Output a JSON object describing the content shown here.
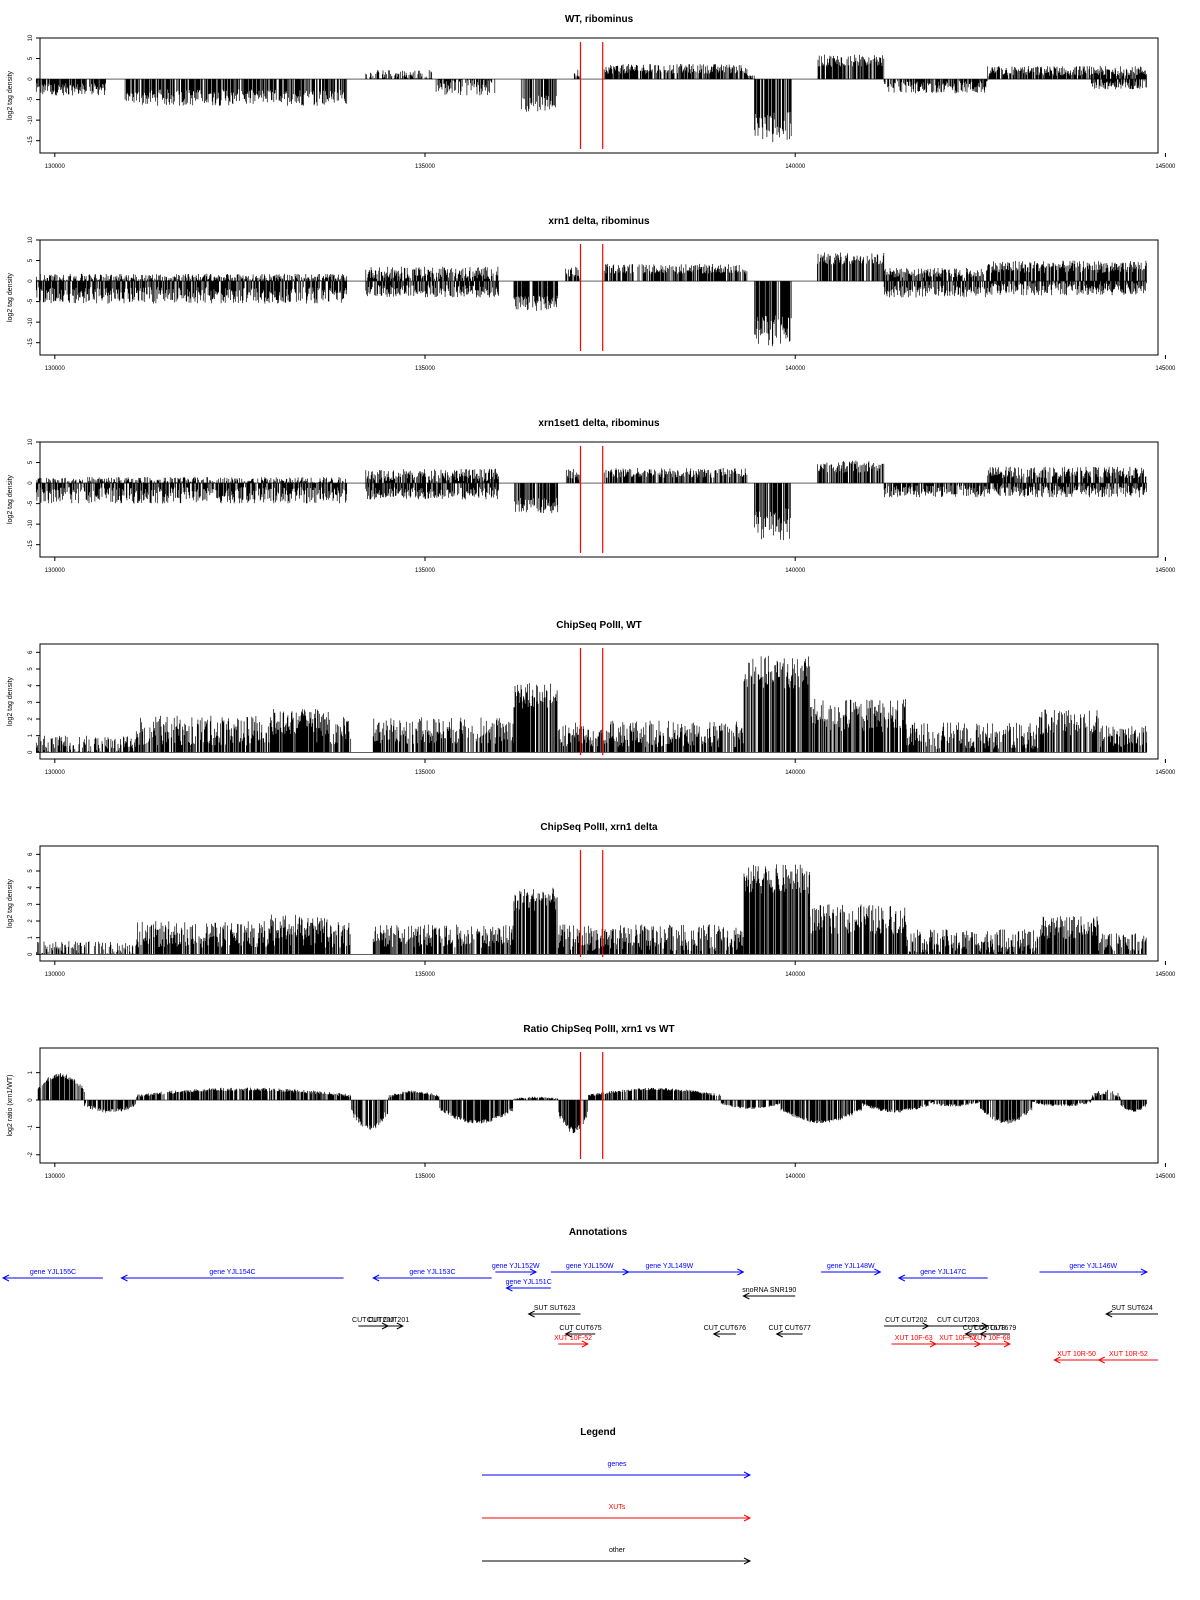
{
  "chart_data": {
    "type": "area",
    "x_range": [
      129800,
      144900
    ],
    "x_ticks": [
      130000,
      135000,
      140000,
      145000
    ],
    "x_tick_labels": [
      "130000",
      "135000",
      "140000",
      "145000"
    ],
    "marker_lines": [
      137100,
      137400
    ],
    "marker_color": "#ff0000",
    "bar_color": "#000000",
    "panels": [
      {
        "id": "wt",
        "title": "WT, ribominus",
        "ylabel": "log2 tag density",
        "ylim": [
          -18,
          10
        ],
        "y_ticks": [
          10,
          5,
          0,
          -5,
          -10,
          -15
        ],
        "y_tick_labels": [
          "10",
          "5",
          "0",
          "-5",
          "-10",
          "-15"
        ],
        "segments": [
          {
            "x0": 129750,
            "x1": 130700,
            "level": -2.5,
            "noise": 1.5
          },
          {
            "x0": 130950,
            "x1": 133950,
            "level": -4.5,
            "noise": 2.0
          },
          {
            "x0": 134200,
            "x1": 135100,
            "level": 0.8,
            "noise": 1.5
          },
          {
            "x0": 135150,
            "x1": 135950,
            "level": -2.0,
            "noise": 2.0
          },
          {
            "x0": 136300,
            "x1": 136780,
            "level": -6.0,
            "noise": 2.0
          },
          {
            "x0": 137000,
            "x1": 137100,
            "level": 1.5,
            "noise": 1.0
          },
          {
            "x0": 137420,
            "x1": 139350,
            "level": 2.5,
            "noise": 1.2
          },
          {
            "x0": 139350,
            "x1": 139450,
            "level": 0.5,
            "noise": 0.5
          },
          {
            "x0": 139450,
            "x1": 139950,
            "level": -12.0,
            "noise": 4.0
          },
          {
            "x0": 140300,
            "x1": 141200,
            "level": 4.5,
            "noise": 1.5
          },
          {
            "x0": 141200,
            "x1": 142600,
            "level": -2.0,
            "noise": 1.5
          },
          {
            "x0": 142600,
            "x1": 144750,
            "level": 2.0,
            "noise": 1.2
          },
          {
            "x0": 144000,
            "x1": 144750,
            "level": -1.5,
            "noise": 1.0
          }
        ]
      },
      {
        "id": "xrn1",
        "title": "xrn1 delta, ribominus",
        "ylabel": "log2 tag density",
        "ylim": [
          -18,
          10
        ],
        "y_ticks": [
          10,
          5,
          0,
          -5,
          -10,
          -15
        ],
        "y_tick_labels": [
          "10",
          "5",
          "0",
          "-5",
          "-10",
          "-15"
        ],
        "segments": [
          {
            "x0": 129750,
            "x1": 133950,
            "level": -3.5,
            "noise": 2.0
          },
          {
            "x0": 129750,
            "x1": 133950,
            "level": 0.8,
            "noise": 1.0
          },
          {
            "x0": 134200,
            "x1": 136000,
            "level": 2.0,
            "noise": 1.5
          },
          {
            "x0": 134200,
            "x1": 136000,
            "level": -2.5,
            "noise": 1.5
          },
          {
            "x0": 136200,
            "x1": 136800,
            "level": -5.5,
            "noise": 2.0
          },
          {
            "x0": 136900,
            "x1": 137100,
            "level": 2.0,
            "noise": 1.5
          },
          {
            "x0": 137420,
            "x1": 139350,
            "level": 3.0,
            "noise": 1.2
          },
          {
            "x0": 139450,
            "x1": 139950,
            "level": -12.0,
            "noise": 4.0
          },
          {
            "x0": 140300,
            "x1": 141200,
            "level": 5.5,
            "noise": 1.5
          },
          {
            "x0": 141200,
            "x1": 142600,
            "level": -2.5,
            "noise": 1.5
          },
          {
            "x0": 141200,
            "x1": 142600,
            "level": 2.0,
            "noise": 1.2
          },
          {
            "x0": 142600,
            "x1": 144750,
            "level": 3.5,
            "noise": 1.5
          },
          {
            "x0": 142600,
            "x1": 144750,
            "level": -2.0,
            "noise": 1.5
          }
        ]
      },
      {
        "id": "xrn1set1",
        "title": "xrn1set1 delta, ribominus",
        "ylabel": "log2 tag density",
        "ylim": [
          -18,
          10
        ],
        "y_ticks": [
          10,
          5,
          0,
          -5,
          -10,
          -15
        ],
        "y_tick_labels": [
          "10",
          "5",
          "0",
          "-5",
          "-10",
          "-15"
        ],
        "segments": [
          {
            "x0": 129750,
            "x1": 133950,
            "level": -3.0,
            "noise": 2.0
          },
          {
            "x0": 129750,
            "x1": 133950,
            "level": 0.5,
            "noise": 1.0
          },
          {
            "x0": 134200,
            "x1": 136000,
            "level": 2.0,
            "noise": 1.5
          },
          {
            "x0": 134200,
            "x1": 136000,
            "level": -2.5,
            "noise": 1.5
          },
          {
            "x0": 136200,
            "x1": 136800,
            "level": -5.5,
            "noise": 2.0
          },
          {
            "x0": 136900,
            "x1": 137100,
            "level": 2.0,
            "noise": 1.5
          },
          {
            "x0": 137420,
            "x1": 139350,
            "level": 2.5,
            "noise": 1.2
          },
          {
            "x0": 139450,
            "x1": 139950,
            "level": -10.0,
            "noise": 4.0
          },
          {
            "x0": 140300,
            "x1": 141200,
            "level": 4.0,
            "noise": 1.5
          },
          {
            "x0": 141200,
            "x1": 142600,
            "level": -2.0,
            "noise": 1.5
          },
          {
            "x0": 142600,
            "x1": 144750,
            "level": 2.5,
            "noise": 1.5
          },
          {
            "x0": 142600,
            "x1": 144750,
            "level": -2.0,
            "noise": 1.5
          }
        ]
      },
      {
        "id": "pol2wt",
        "title": "ChipSeq PolII, WT",
        "ylabel": "log2 tag density",
        "ylim": [
          -0.4,
          6.5
        ],
        "y_ticks": [
          0,
          1,
          2,
          3,
          4,
          5,
          6
        ],
        "y_tick_labels": [
          "0",
          "1",
          "2",
          "3",
          "4",
          "5",
          "6"
        ],
        "segments": [
          {
            "x0": 129750,
            "x1": 131100,
            "level": 0.4,
            "noise": 0.6
          },
          {
            "x0": 131100,
            "x1": 134000,
            "level": 1.3,
            "noise": 0.9
          },
          {
            "x0": 132900,
            "x1": 133700,
            "level": 1.8,
            "noise": 0.8
          },
          {
            "x0": 134300,
            "x1": 136200,
            "level": 1.3,
            "noise": 0.8
          },
          {
            "x0": 136200,
            "x1": 136800,
            "level": 3.4,
            "noise": 0.8
          },
          {
            "x0": 136800,
            "x1": 139300,
            "level": 1.1,
            "noise": 0.8
          },
          {
            "x0": 139300,
            "x1": 140200,
            "level": 4.8,
            "noise": 1.0
          },
          {
            "x0": 140200,
            "x1": 141500,
            "level": 2.2,
            "noise": 1.0
          },
          {
            "x0": 141500,
            "x1": 143300,
            "level": 1.0,
            "noise": 0.8
          },
          {
            "x0": 143300,
            "x1": 144100,
            "level": 1.8,
            "noise": 0.8
          },
          {
            "x0": 144100,
            "x1": 144750,
            "level": 1.0,
            "noise": 0.7
          }
        ]
      },
      {
        "id": "pol2xrn1",
        "title": "ChipSeq PolII, xrn1 delta",
        "ylabel": "log2 tag density",
        "ylim": [
          -0.4,
          6.5
        ],
        "y_ticks": [
          0,
          1,
          2,
          3,
          4,
          5,
          6
        ],
        "y_tick_labels": [
          "0",
          "1",
          "2",
          "3",
          "4",
          "5",
          "6"
        ],
        "segments": [
          {
            "x0": 129750,
            "x1": 131100,
            "level": 0.3,
            "noise": 0.5
          },
          {
            "x0": 131100,
            "x1": 134000,
            "level": 1.2,
            "noise": 0.8
          },
          {
            "x0": 132900,
            "x1": 133700,
            "level": 1.7,
            "noise": 0.7
          },
          {
            "x0": 134300,
            "x1": 136200,
            "level": 1.1,
            "noise": 0.7
          },
          {
            "x0": 136200,
            "x1": 136800,
            "level": 3.3,
            "noise": 0.7
          },
          {
            "x0": 136800,
            "x1": 139300,
            "level": 1.0,
            "noise": 0.8
          },
          {
            "x0": 139300,
            "x1": 140200,
            "level": 4.5,
            "noise": 0.9
          },
          {
            "x0": 140200,
            "x1": 141500,
            "level": 2.1,
            "noise": 0.9
          },
          {
            "x0": 141500,
            "x1": 143300,
            "level": 0.8,
            "noise": 0.7
          },
          {
            "x0": 143300,
            "x1": 144100,
            "level": 1.6,
            "noise": 0.7
          },
          {
            "x0": 144100,
            "x1": 144750,
            "level": 0.8,
            "noise": 0.6
          }
        ]
      },
      {
        "id": "ratio",
        "title": "Ratio ChipSeq PolII, xrn1 vs WT",
        "ylabel": "log2 ratio (xrn1/WT)",
        "ylim": [
          -2.3,
          1.9
        ],
        "y_ticks": [
          1,
          0,
          -1,
          -2
        ],
        "y_tick_labels": [
          "1",
          "0",
          "-1",
          "-2"
        ],
        "segments": [
          {
            "x0": 129750,
            "x1": 130400,
            "level": 0.9,
            "noise": 0.6
          },
          {
            "x0": 130400,
            "x1": 131100,
            "level": -0.4,
            "noise": 0.5
          },
          {
            "x0": 131100,
            "x1": 134000,
            "level": 0.4,
            "noise": 0.4
          },
          {
            "x0": 134000,
            "x1": 134500,
            "level": -1.0,
            "noise": 0.8
          },
          {
            "x0": 134500,
            "x1": 135200,
            "level": 0.3,
            "noise": 0.3
          },
          {
            "x0": 135200,
            "x1": 136200,
            "level": -0.8,
            "noise": 0.5
          },
          {
            "x0": 136200,
            "x1": 136800,
            "level": 0.1,
            "noise": 0.2
          },
          {
            "x0": 136800,
            "x1": 137200,
            "level": -1.1,
            "noise": 0.8
          },
          {
            "x0": 137200,
            "x1": 139000,
            "level": 0.4,
            "noise": 0.3
          },
          {
            "x0": 139000,
            "x1": 139800,
            "level": -0.3,
            "noise": 0.2
          },
          {
            "x0": 139800,
            "x1": 140900,
            "level": -0.8,
            "noise": 0.4
          },
          {
            "x0": 140900,
            "x1": 141800,
            "level": -0.4,
            "noise": 0.4
          },
          {
            "x0": 141800,
            "x1": 142500,
            "level": -0.2,
            "noise": 0.3
          },
          {
            "x0": 142500,
            "x1": 143200,
            "level": -0.8,
            "noise": 0.5
          },
          {
            "x0": 143200,
            "x1": 144000,
            "level": -0.2,
            "noise": 0.3
          },
          {
            "x0": 144000,
            "x1": 144400,
            "level": 0.3,
            "noise": 0.6
          },
          {
            "x0": 144400,
            "x1": 144750,
            "level": -0.4,
            "noise": 0.3
          }
        ]
      }
    ],
    "annotations": {
      "title": "Annotations",
      "features": [
        {
          "label": "gene YJL155C",
          "color": "#0000ff",
          "x0": 129300,
          "x1": 130650,
          "dir": "left",
          "row": 0
        },
        {
          "label": "gene YJL154C",
          "color": "#0000ff",
          "x0": 130900,
          "x1": 133900,
          "dir": "left",
          "row": 0
        },
        {
          "label": "gene YJL153C",
          "color": "#0000ff",
          "x0": 134300,
          "x1": 135900,
          "dir": "left",
          "row": 0
        },
        {
          "label": "gene YJL152W",
          "color": "#0000ff",
          "x0": 135950,
          "x1": 136500,
          "dir": "right",
          "row": -1
        },
        {
          "label": "gene YJL151C",
          "color": "#0000ff",
          "x0": 136100,
          "x1": 136700,
          "dir": "left",
          "row": 1
        },
        {
          "label": "gene YJL150W",
          "color": "#0000ff",
          "x0": 136700,
          "x1": 137750,
          "dir": "right",
          "row": -1
        },
        {
          "label": "gene YJL149W",
          "color": "#0000ff",
          "x0": 137300,
          "x1": 139300,
          "dir": "right",
          "row": -1
        },
        {
          "label": "gene YJL148W",
          "color": "#0000ff",
          "x0": 140350,
          "x1": 141150,
          "dir": "right",
          "row": -1
        },
        {
          "label": "gene YJL147C",
          "color": "#0000ff",
          "x0": 141400,
          "x1": 142600,
          "dir": "left",
          "row": 0
        },
        {
          "label": "gene YJL146W",
          "color": "#0000ff",
          "x0": 143300,
          "x1": 144750,
          "dir": "right",
          "row": -1
        },
        {
          "label": "snoRNA SNR190",
          "color": "#000000",
          "x0": 139300,
          "x1": 140000,
          "dir": "left",
          "row": 2
        },
        {
          "label": "CUT CUT200",
          "color": "#000000",
          "x0": 134100,
          "x1": 134500,
          "dir": "right",
          "row": 4
        },
        {
          "label": "CUT CUT201",
          "color": "#000000",
          "x0": 134300,
          "x1": 134700,
          "dir": "right",
          "row": 4
        },
        {
          "label": "SUT SUT623",
          "color": "#000000",
          "x0": 136400,
          "x1": 137100,
          "dir": "left",
          "row": 3
        },
        {
          "label": "CUT CUT675",
          "color": "#000000",
          "x0": 136900,
          "x1": 137300,
          "dir": "left",
          "row": 5
        },
        {
          "label": "XUT 10F-52",
          "color": "#ff0000",
          "x0": 136800,
          "x1": 137200,
          "dir": "right",
          "row": 6
        },
        {
          "label": "CUT CUT676",
          "color": "#000000",
          "x0": 138900,
          "x1": 139200,
          "dir": "left",
          "row": 5
        },
        {
          "label": "CUT CUT677",
          "color": "#000000",
          "x0": 139750,
          "x1": 140100,
          "dir": "left",
          "row": 5
        },
        {
          "label": "CUT CUT202",
          "color": "#000000",
          "x0": 141200,
          "x1": 141800,
          "dir": "right",
          "row": 4
        },
        {
          "label": "CUT CUT203",
          "color": "#000000",
          "x0": 141800,
          "x1": 142600,
          "dir": "right",
          "row": 4
        },
        {
          "label": "CUT CUT678",
          "color": "#000000",
          "x0": 142300,
          "x1": 142800,
          "dir": "left",
          "row": 5
        },
        {
          "label": "CUT CUT679",
          "color": "#000000",
          "x0": 142500,
          "x1": 142900,
          "dir": "left",
          "row": 5
        },
        {
          "label": "XUT 10F-63",
          "color": "#ff0000",
          "x0": 141300,
          "x1": 141900,
          "dir": "right",
          "row": 6
        },
        {
          "label": "XUT 10F-67",
          "color": "#ff0000",
          "x0": 141900,
          "x1": 142500,
          "dir": "right",
          "row": 6
        },
        {
          "label": "XUT 10F-68",
          "color": "#ff0000",
          "x0": 142400,
          "x1": 142900,
          "dir": "right",
          "row": 6
        },
        {
          "label": "XUT 10R-50",
          "color": "#ff0000",
          "x0": 143500,
          "x1": 144100,
          "dir": "left",
          "row": 7
        },
        {
          "label": "XUT 10R-52",
          "color": "#ff0000",
          "x0": 144100,
          "x1": 144900,
          "dir": "left",
          "row": 7
        },
        {
          "label": "SUT SUT624",
          "color": "#000000",
          "x0": 144200,
          "x1": 144900,
          "dir": "left",
          "row": 3
        }
      ]
    },
    "legend": {
      "title": "Legend",
      "items": [
        {
          "label": "genes",
          "color": "#0000ff"
        },
        {
          "label": "XUTs",
          "color": "#ff0000"
        },
        {
          "label": "other",
          "color": "#000000"
        }
      ]
    }
  }
}
